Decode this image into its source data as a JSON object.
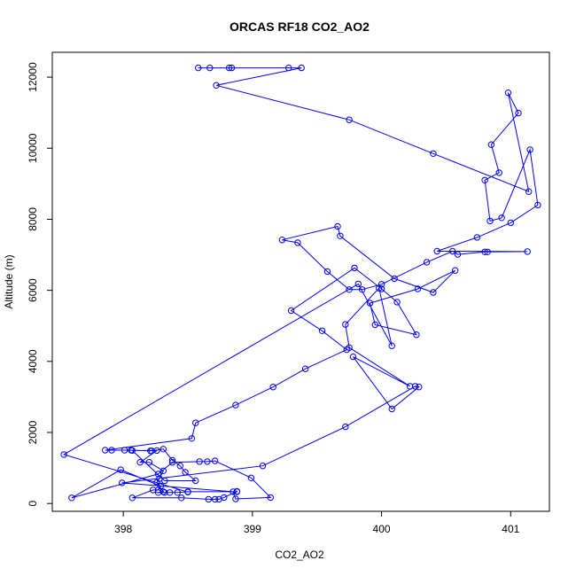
{
  "chart_data": {
    "type": "line",
    "title": "ORCAS RF18 CO2_AO2",
    "xlabel": "CO2_AO2",
    "ylabel": "Altitude (m)",
    "xlim": [
      397.45,
      401.3
    ],
    "ylim": [
      -220,
      12700
    ],
    "x_ticks": [
      398,
      399,
      400,
      401
    ],
    "y_ticks": [
      0,
      2000,
      4000,
      6000,
      8000,
      10000,
      12000
    ],
    "x_tick_labels": [
      "398",
      "399",
      "400",
      "401"
    ],
    "y_tick_labels": [
      "0",
      "2000",
      "4000",
      "6000",
      "8000",
      "10000",
      "12000"
    ],
    "series_color": "#0000ff",
    "marker": "open-circle",
    "grid": false,
    "legend": "none",
    "series": [
      {
        "points": [
          [
            398.58,
            12260
          ],
          [
            398.67,
            12260
          ],
          [
            398.82,
            12260
          ],
          [
            398.84,
            12260
          ],
          [
            399.28,
            12260
          ],
          [
            399.38,
            12260
          ],
          [
            398.72,
            11770
          ],
          [
            399.75,
            10800
          ],
          [
            400.4,
            9850
          ],
          [
            401.14,
            8780
          ],
          [
            400.98,
            11560
          ],
          [
            401.06,
            10990
          ],
          [
            400.85,
            10100
          ],
          [
            400.91,
            9310
          ],
          [
            400.8,
            9100
          ],
          [
            400.84,
            7950
          ],
          [
            400.93,
            8040
          ],
          [
            401.15,
            9960
          ],
          [
            401.21,
            8400
          ],
          [
            401.0,
            7900
          ],
          [
            400.74,
            7490
          ],
          [
            400.43,
            7100
          ],
          [
            401.13,
            7090
          ],
          [
            400.82,
            7080
          ],
          [
            400.8,
            7080
          ],
          [
            400.59,
            7010
          ],
          [
            400.55,
            7100
          ],
          [
            400.35,
            6790
          ],
          [
            400.0,
            6170
          ],
          [
            399.85,
            6020
          ],
          [
            399.75,
            6020
          ],
          [
            399.58,
            6530
          ],
          [
            399.35,
            7340
          ],
          [
            399.23,
            7420
          ],
          [
            399.66,
            7800
          ],
          [
            399.68,
            7530
          ],
          [
            400.1,
            6330
          ],
          [
            400.4,
            5940
          ],
          [
            400.57,
            6560
          ],
          [
            400.28,
            6040
          ],
          [
            399.91,
            5640
          ],
          [
            399.95,
            5030
          ],
          [
            400.27,
            4750
          ],
          [
            400.12,
            5670
          ],
          [
            400.0,
            6040
          ],
          [
            399.79,
            6630
          ],
          [
            399.3,
            5430
          ],
          [
            399.54,
            4860
          ],
          [
            399.73,
            4330
          ],
          [
            399.41,
            3790
          ],
          [
            399.16,
            3280
          ],
          [
            398.87,
            2770
          ],
          [
            398.56,
            2270
          ],
          [
            398.53,
            1830
          ],
          [
            397.86,
            1500
          ],
          [
            397.91,
            1500
          ],
          [
            398.01,
            1500
          ],
          [
            398.06,
            1500
          ],
          [
            398.21,
            1480
          ],
          [
            398.22,
            1480
          ],
          [
            398.31,
            1530
          ],
          [
            398.38,
            1220
          ],
          [
            398.44,
            1060
          ],
          [
            398.48,
            880
          ],
          [
            398.56,
            640
          ],
          [
            398.32,
            640
          ],
          [
            398.07,
            1490
          ],
          [
            398.26,
            1490
          ],
          [
            398.13,
            1160
          ],
          [
            398.2,
            1160
          ],
          [
            398.31,
            920
          ],
          [
            398.28,
            700
          ],
          [
            398.26,
            590
          ],
          [
            398.31,
            330
          ],
          [
            398.27,
            310
          ],
          [
            398.32,
            310
          ],
          [
            398.36,
            310
          ],
          [
            398.42,
            310
          ],
          [
            398.5,
            330
          ],
          [
            398.88,
            330
          ],
          [
            398.88,
            340
          ],
          [
            398.78,
            170
          ],
          [
            398.74,
            120
          ],
          [
            398.71,
            120
          ],
          [
            398.66,
            120
          ],
          [
            398.45,
            160
          ],
          [
            398.07,
            160
          ],
          [
            398.23,
            380
          ],
          [
            398.27,
            380
          ],
          [
            398.29,
            490
          ],
          [
            397.98,
            950
          ],
          [
            397.6,
            160
          ],
          [
            398.27,
            830
          ],
          [
            398.38,
            1160
          ],
          [
            398.59,
            1180
          ],
          [
            398.65,
            1180
          ],
          [
            398.71,
            1200
          ],
          [
            398.99,
            720
          ],
          [
            399.14,
            170
          ],
          [
            398.87,
            130
          ],
          [
            398.85,
            330
          ],
          [
            397.99,
            580
          ],
          [
            399.08,
            1060
          ],
          [
            399.72,
            2160
          ],
          [
            400.26,
            3300
          ],
          [
            400.29,
            3280
          ],
          [
            400.08,
            2660
          ],
          [
            399.78,
            4130
          ],
          [
            400.22,
            3300
          ],
          [
            399.75,
            4390
          ],
          [
            399.72,
            5040
          ],
          [
            399.98,
            6060
          ],
          [
            400.08,
            4440
          ],
          [
            399.82,
            6180
          ],
          [
            397.54,
            1380
          ],
          [
            398.5,
            320
          ]
        ]
      }
    ]
  }
}
